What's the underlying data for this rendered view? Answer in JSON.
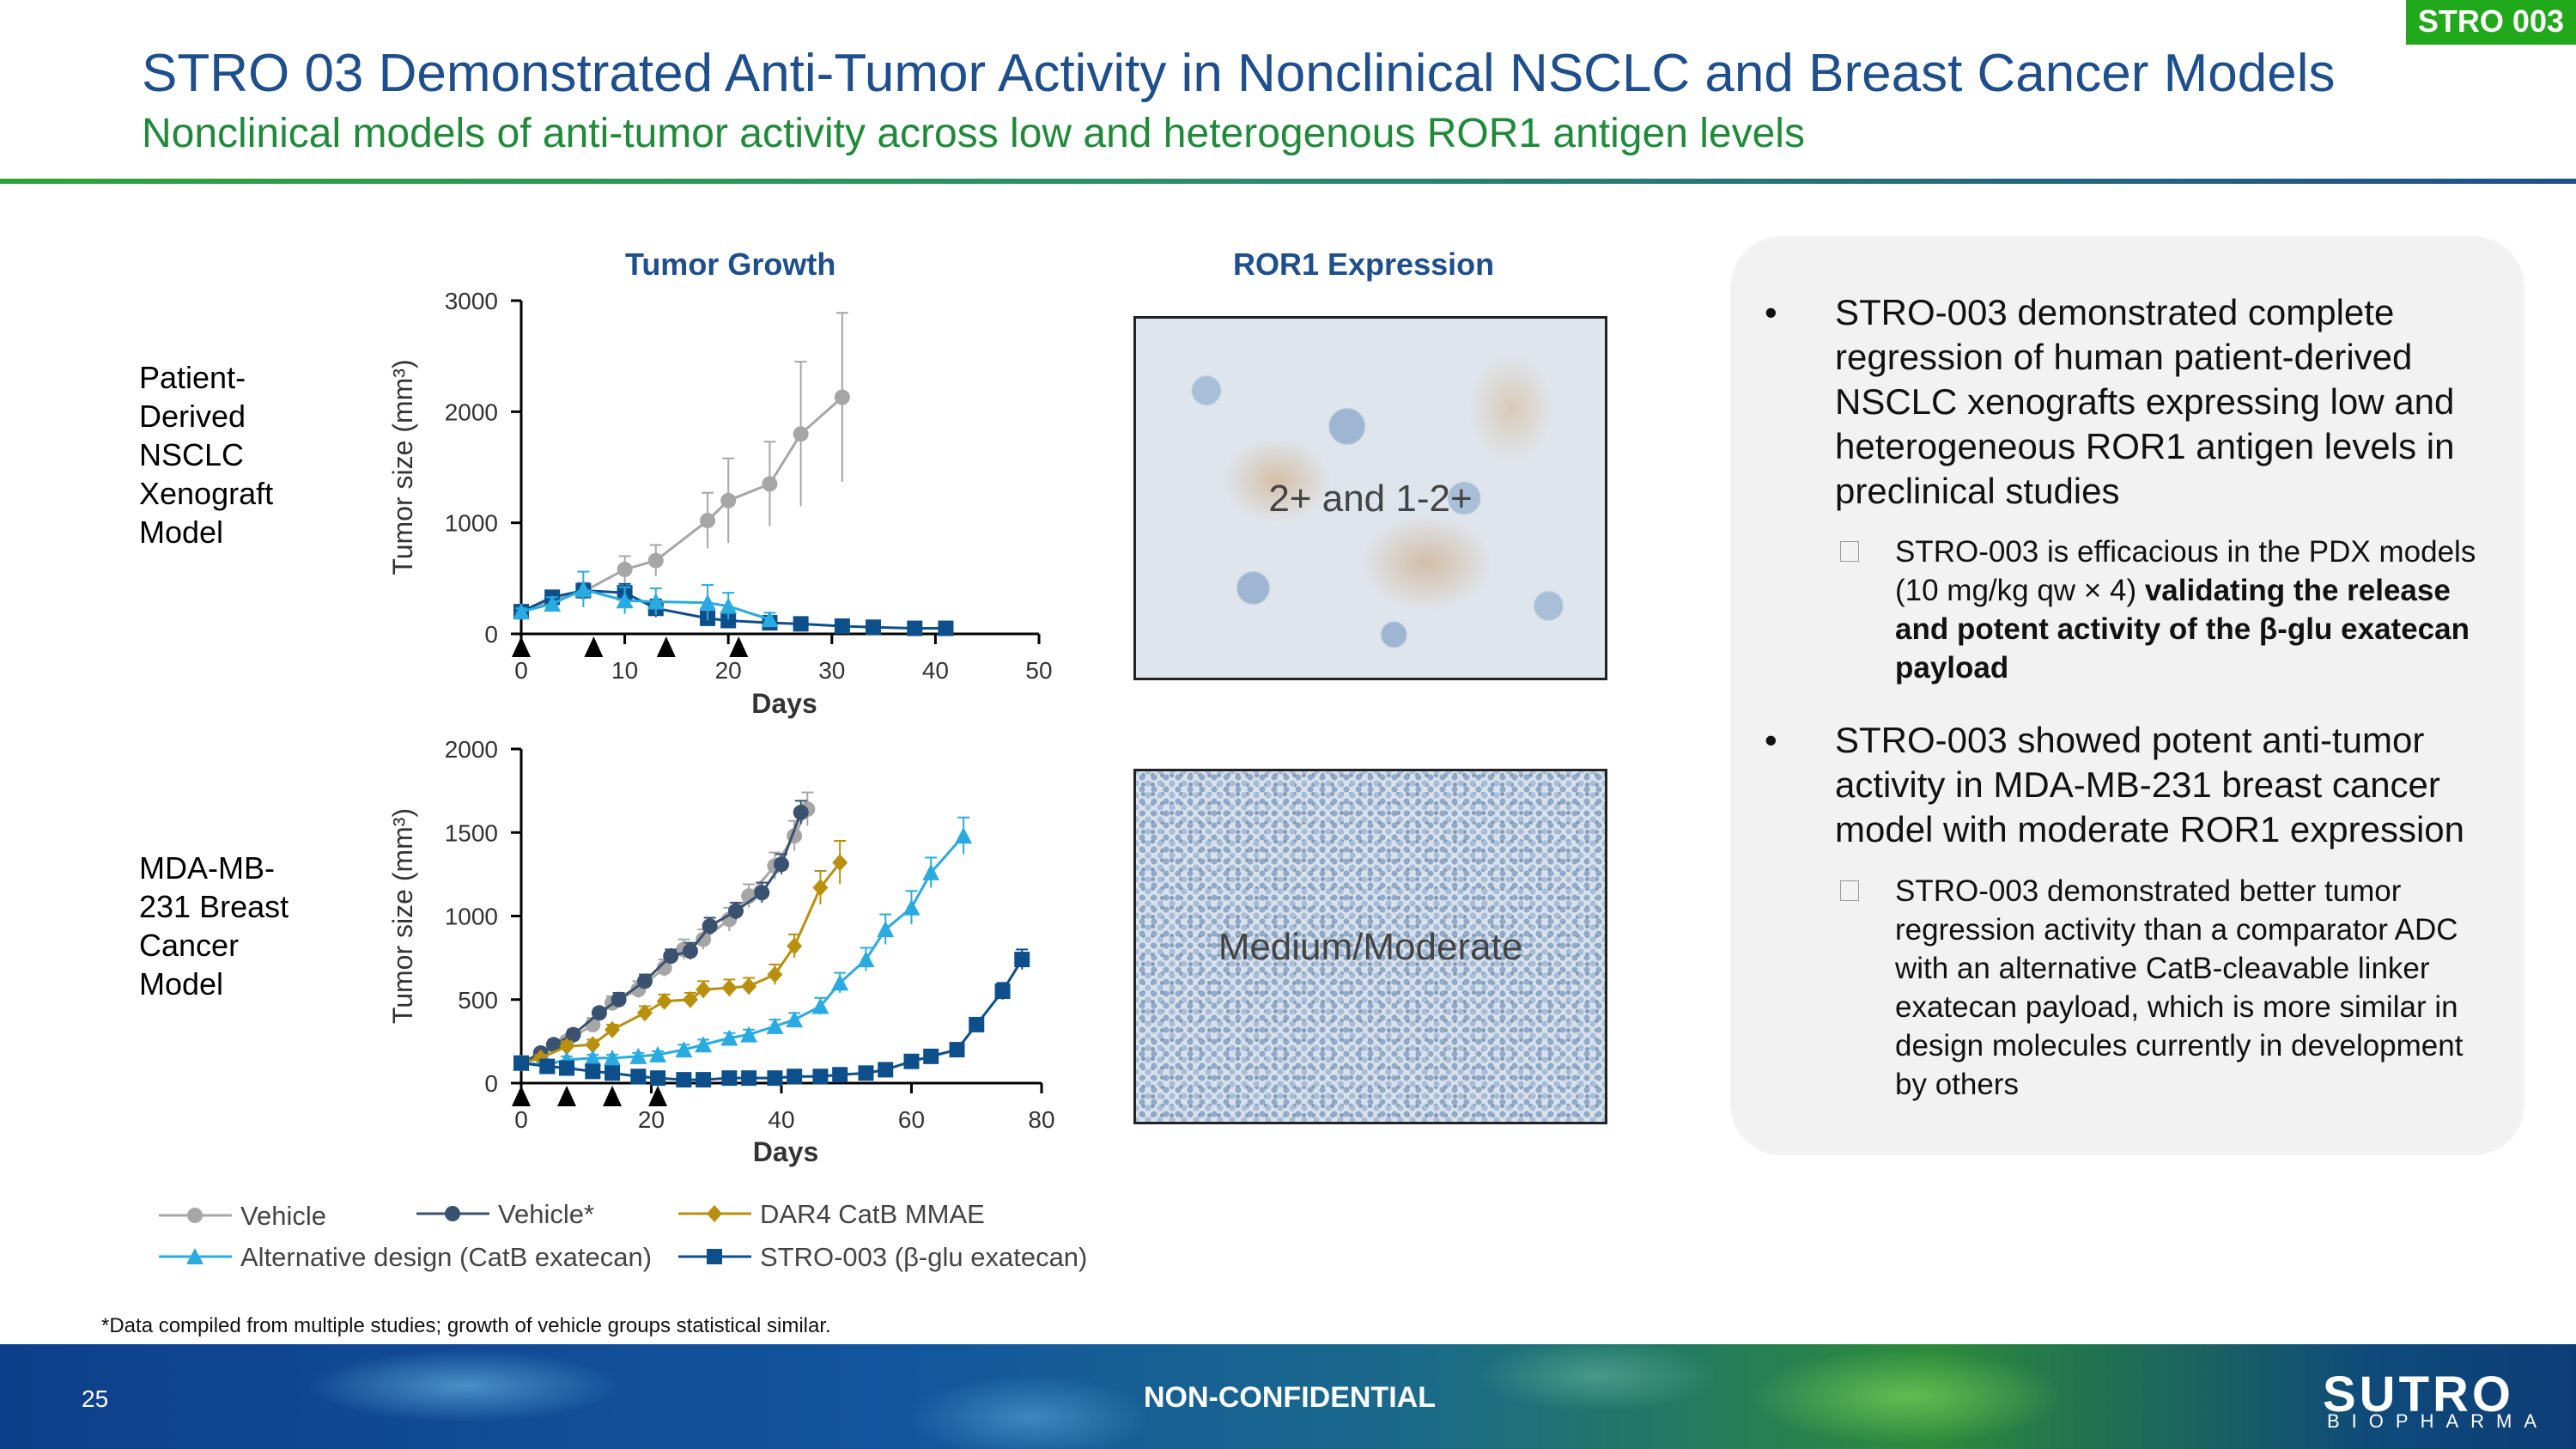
{
  "header": {
    "tag": "STRO 003",
    "title": "STRO 03 Demonstrated Anti-Tumor Activity in Nonclinical NSCLC and Breast Cancer Models",
    "subtitle": "Nonclinical models of anti-tumor activity across low and heterogenous ROR1 antigen levels"
  },
  "rows": {
    "row1_label": "Patient-Derived NSCLC Xenograft Model",
    "row2_label": "MDA-MB-231 Breast Cancer Model"
  },
  "panels": {
    "tumor_growth_title": "Tumor Growth",
    "ror1_title": "ROR1 Expression",
    "ihc1_label": "2+ and 1-2+",
    "ihc2_label": "Medium/Moderate"
  },
  "legend": {
    "vehicle": "Vehicle",
    "vehicle_star": "Vehicle*",
    "dar4": "DAR4 CatB MMAE",
    "alt": "Alternative design (CatB exatecan)",
    "stro": "STRO-003 (β-glu exatecan)"
  },
  "bullets": {
    "b1": "STRO-003 demonstrated complete regression of human patient-derived NSCLC xenografts expressing low and heterogeneous ROR1 antigen levels in preclinical studies",
    "b1_sub_plain": "STRO-003 is efficacious in the PDX models (10 mg/kg qw × 4) ",
    "b1_sub_bold": "validating the release and potent activity of the β-glu exatecan payload",
    "b2": "STRO-003 showed potent anti-tumor activity in MDA-MB-231 breast cancer model with moderate ROR1 expression",
    "b2_sub": "STRO-003 demonstrated better tumor regression activity than a comparator ADC with an alternative CatB-cleavable linker exatecan payload, which is more similar in design molecules currently in development by others"
  },
  "footnote": "*Data compiled from multiple studies; growth of vehicle groups statistical similar.",
  "footer": {
    "page": "25",
    "confidentiality": "NON-CONFIDENTIAL",
    "logo": "SUTRO",
    "logo_sub": "BIOPHARMA"
  },
  "colors": {
    "vehicle": "#a6a6a6",
    "vehicle_star": "#3a5270",
    "dar4": "#b8900e",
    "alt": "#29abe2",
    "stro": "#0d4f8b",
    "title_blue": "#1e4f8c",
    "subtitle_green": "#1e8a3a"
  },
  "chart_data": [
    {
      "type": "line",
      "title": "Tumor Growth",
      "xlabel": "Days",
      "ylabel": "Tumor size (mm³)",
      "xlim": [
        0,
        50
      ],
      "ylim": [
        0,
        3000
      ],
      "xticks": [
        0,
        10,
        20,
        30,
        40,
        50
      ],
      "yticks": [
        0,
        1000,
        2000,
        3000
      ],
      "dosing_days": [
        0,
        7,
        14,
        21
      ],
      "series": [
        {
          "name": "Vehicle",
          "color": "#a6a6a6",
          "marker": "circle",
          "x": [
            0,
            3,
            6,
            10,
            13,
            18,
            20,
            24,
            27,
            31
          ],
          "y": [
            200,
            300,
            380,
            580,
            660,
            1020,
            1200,
            1350,
            1800,
            2130
          ],
          "err": [
            30,
            60,
            80,
            120,
            140,
            250,
            380,
            380,
            650,
            760
          ]
        },
        {
          "name": "STRO-003 (β-glu exatecan)",
          "color": "#0d4f8b",
          "marker": "square",
          "x": [
            0,
            3,
            6,
            10,
            13,
            18,
            20,
            24,
            27,
            31,
            34,
            38,
            41
          ],
          "y": [
            200,
            330,
            390,
            370,
            230,
            140,
            120,
            100,
            90,
            70,
            60,
            50,
            50
          ],
          "err": [
            20,
            50,
            60,
            80,
            80,
            60,
            40,
            30,
            20,
            15,
            10,
            10,
            10
          ]
        },
        {
          "name": "Alternative design (CatB exatecan)",
          "color": "#29abe2",
          "marker": "triangle",
          "x": [
            0,
            3,
            6,
            10,
            13,
            18,
            20,
            24
          ],
          "y": [
            200,
            270,
            400,
            300,
            290,
            280,
            250,
            130
          ],
          "err": [
            30,
            60,
            160,
            120,
            120,
            160,
            120,
            60
          ]
        }
      ]
    },
    {
      "type": "line",
      "title": "",
      "xlabel": "Days",
      "ylabel": "Tumor size (mm³)",
      "xlim": [
        0,
        80
      ],
      "ylim": [
        0,
        2000
      ],
      "xticks": [
        0,
        20,
        40,
        60,
        80
      ],
      "yticks": [
        0,
        500,
        1000,
        1500,
        2000
      ],
      "dosing_days": [
        0,
        7,
        14,
        21
      ],
      "series": [
        {
          "name": "Vehicle",
          "color": "#a6a6a6",
          "marker": "circle",
          "x": [
            0,
            3,
            7,
            11,
            14,
            18,
            22,
            25,
            28,
            32,
            35,
            39,
            42,
            44
          ],
          "y": [
            120,
            170,
            250,
            350,
            480,
            560,
            690,
            800,
            860,
            980,
            1120,
            1300,
            1480,
            1640
          ],
          "err": [
            20,
            30,
            30,
            40,
            40,
            50,
            50,
            60,
            60,
            70,
            70,
            80,
            90,
            100
          ]
        },
        {
          "name": "Vehicle*",
          "color": "#3a5270",
          "marker": "circle",
          "x": [
            0,
            3,
            5,
            8,
            12,
            15,
            19,
            23,
            26,
            29,
            33,
            37,
            40,
            43
          ],
          "y": [
            120,
            180,
            230,
            290,
            420,
            500,
            610,
            760,
            790,
            940,
            1030,
            1140,
            1310,
            1620
          ],
          "err": [
            20,
            20,
            30,
            30,
            30,
            40,
            40,
            40,
            50,
            50,
            50,
            60,
            60,
            70
          ]
        },
        {
          "name": "DAR4 CatB MMAE",
          "color": "#b8900e",
          "marker": "diamond",
          "x": [
            0,
            3,
            7,
            11,
            14,
            19,
            22,
            26,
            28,
            32,
            35,
            39,
            42,
            46,
            49
          ],
          "y": [
            120,
            150,
            220,
            230,
            320,
            420,
            490,
            500,
            560,
            570,
            580,
            650,
            820,
            1170,
            1320
          ],
          "err": [
            20,
            20,
            30,
            30,
            30,
            40,
            40,
            40,
            50,
            50,
            50,
            60,
            70,
            100,
            130
          ]
        },
        {
          "name": "Alternative design (CatB exatecan)",
          "color": "#29abe2",
          "marker": "triangle",
          "x": [
            0,
            4,
            7,
            11,
            14,
            18,
            21,
            25,
            28,
            32,
            35,
            39,
            42,
            46,
            49,
            53,
            56,
            60,
            63,
            68
          ],
          "y": [
            120,
            110,
            140,
            150,
            150,
            160,
            170,
            200,
            230,
            270,
            290,
            340,
            380,
            460,
            600,
            740,
            920,
            1050,
            1260,
            1480
          ],
          "err": [
            20,
            20,
            20,
            20,
            20,
            20,
            20,
            30,
            30,
            30,
            30,
            40,
            40,
            50,
            60,
            70,
            90,
            100,
            90,
            110
          ]
        },
        {
          "name": "STRO-003 (β-glu exatecan)",
          "color": "#0d4f8b",
          "marker": "square",
          "x": [
            0,
            4,
            7,
            11,
            14,
            18,
            21,
            25,
            28,
            32,
            35,
            39,
            42,
            46,
            49,
            53,
            56,
            60,
            63,
            67,
            70,
            74,
            77
          ],
          "y": [
            120,
            100,
            90,
            70,
            60,
            40,
            30,
            20,
            20,
            30,
            30,
            30,
            40,
            40,
            50,
            60,
            80,
            130,
            160,
            200,
            350,
            550,
            740
          ],
          "err": [
            10,
            10,
            10,
            10,
            10,
            10,
            10,
            10,
            10,
            10,
            10,
            10,
            10,
            10,
            10,
            10,
            20,
            20,
            20,
            30,
            40,
            50,
            60
          ]
        }
      ]
    }
  ]
}
